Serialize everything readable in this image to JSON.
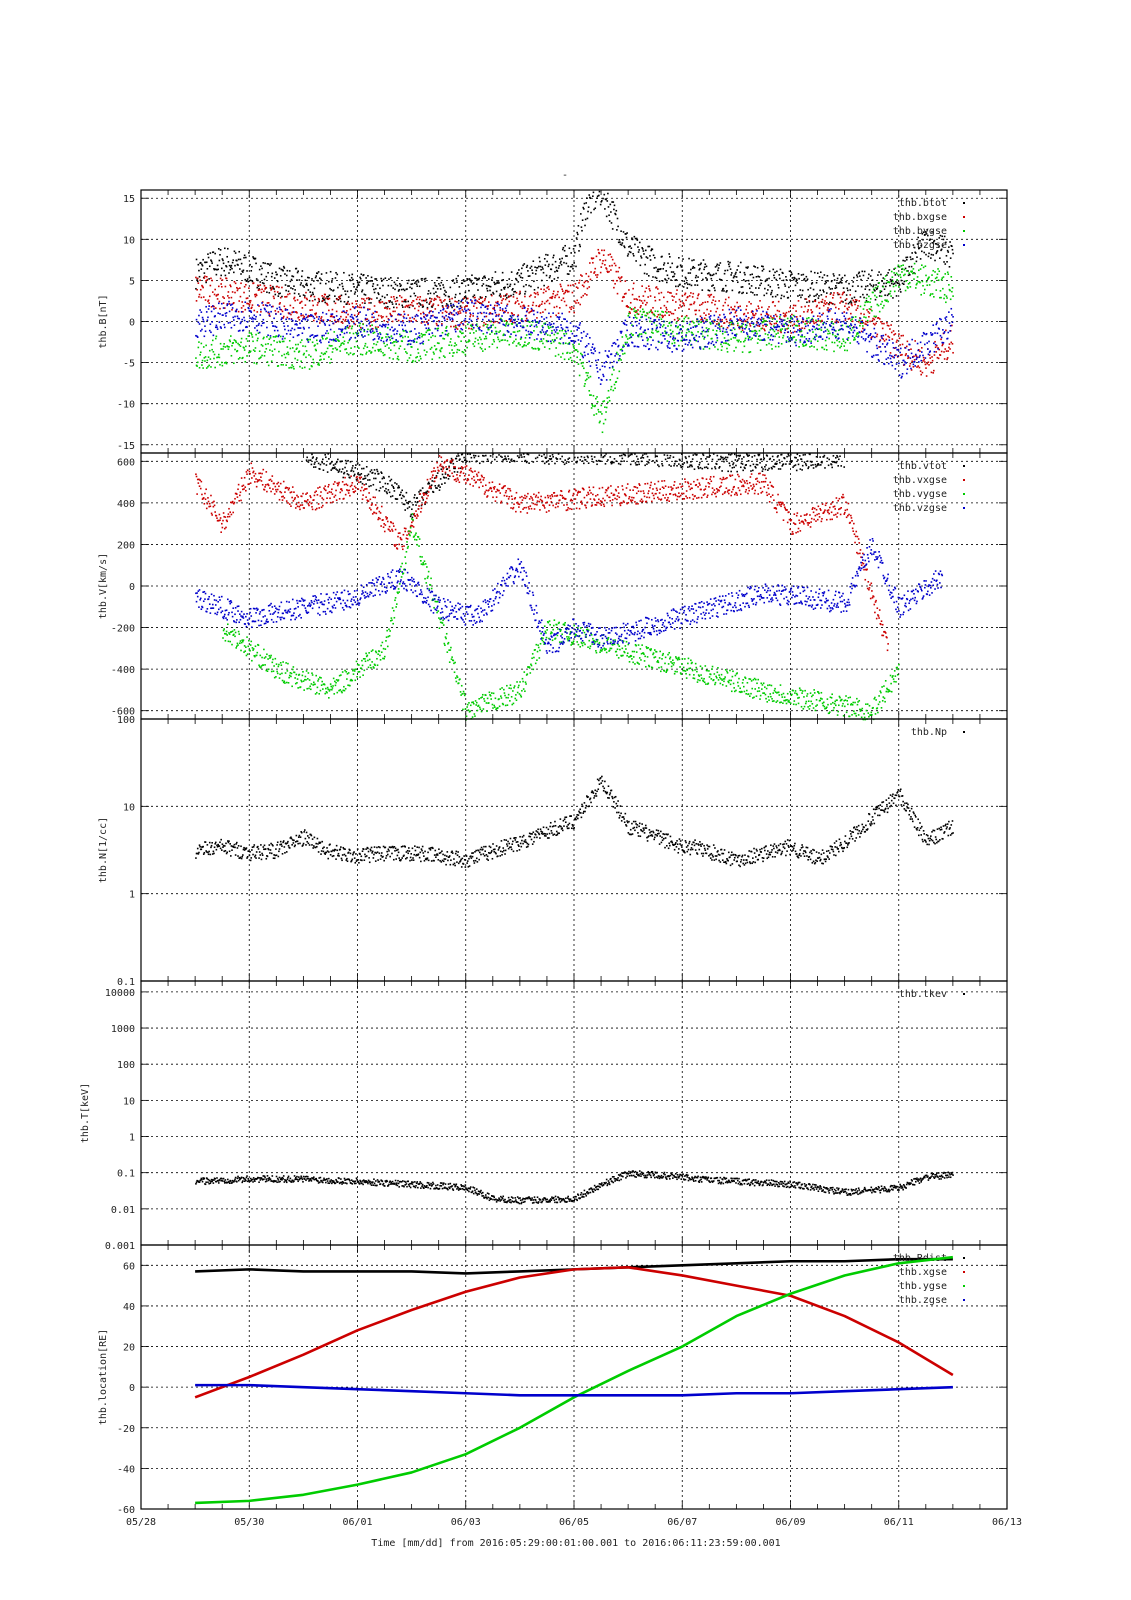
{
  "figure": {
    "top_title": "-",
    "bottom_label": "Time [mm/dd]  from 2016:05:29:00:01:00.001  to  2016:06:11:23:59:00.001",
    "x_tick_labels": [
      "05/28",
      "05/30",
      "06/01",
      "06/03",
      "06/05",
      "06/07",
      "06/09",
      "06/11",
      "06/13"
    ],
    "colors": {
      "black": "#000000",
      "red": "#cc0000",
      "green": "#00cc00",
      "blue": "#0000cc"
    }
  },
  "chart_data": [
    {
      "type": "scatter",
      "ylabel": "thb.B[nT]",
      "yscale": "linear",
      "ylim": [
        -16,
        16
      ],
      "yticks": [
        15,
        10,
        5,
        0,
        -5,
        -10,
        -15
      ],
      "grid": true,
      "legend_position": "top-right",
      "series": [
        {
          "name": "thb.btot",
          "color": "#000000",
          "values": [
            [
              1,
              6
            ],
            [
              1.5,
              7.5
            ],
            [
              2,
              6.5
            ],
            [
              2.5,
              5
            ],
            [
              3,
              4.5
            ],
            [
              4,
              4
            ],
            [
              5,
              3.5
            ],
            [
              6,
              3.8
            ],
            [
              7,
              5
            ],
            [
              8,
              8
            ],
            [
              8.2,
              14
            ],
            [
              8.5,
              16
            ],
            [
              9,
              9
            ],
            [
              9.5,
              7
            ],
            [
              10,
              6
            ],
            [
              11,
              5.5
            ],
            [
              12,
              4.5
            ],
            [
              13,
              4
            ],
            [
              14,
              5
            ],
            [
              14.5,
              10
            ],
            [
              15,
              8
            ]
          ]
        },
        {
          "name": "thb.bxgse",
          "color": "#cc0000",
          "values": [
            [
              1,
              4
            ],
            [
              2,
              3
            ],
            [
              3,
              2
            ],
            [
              4,
              1
            ],
            [
              5,
              1.5
            ],
            [
              6,
              1
            ],
            [
              7,
              2
            ],
            [
              8,
              3
            ],
            [
              8.5,
              8
            ],
            [
              9,
              3
            ],
            [
              10,
              2
            ],
            [
              11,
              1
            ],
            [
              12,
              0.5
            ],
            [
              13,
              2
            ],
            [
              14,
              -3
            ],
            [
              14.5,
              -5
            ],
            [
              15,
              -2
            ]
          ]
        },
        {
          "name": "thb.bygse",
          "color": "#00cc00",
          "values": [
            [
              1,
              -4
            ],
            [
              2,
              -3
            ],
            [
              3,
              -4
            ],
            [
              4,
              -2
            ],
            [
              5,
              -3
            ],
            [
              6,
              -2
            ],
            [
              7,
              -1
            ],
            [
              8,
              -3
            ],
            [
              8.5,
              -12
            ],
            [
              9,
              0
            ],
            [
              10,
              -1
            ],
            [
              11,
              -2
            ],
            [
              12,
              -1
            ],
            [
              13,
              -2
            ],
            [
              14,
              6
            ],
            [
              15,
              4
            ]
          ]
        },
        {
          "name": "thb.bzgse",
          "color": "#0000cc",
          "values": [
            [
              1,
              0
            ],
            [
              2,
              1
            ],
            [
              3,
              -1
            ],
            [
              4,
              0
            ],
            [
              5,
              -1
            ],
            [
              6,
              1
            ],
            [
              7,
              0
            ],
            [
              8,
              -1
            ],
            [
              8.5,
              -6
            ],
            [
              9,
              -1
            ],
            [
              10,
              -2
            ],
            [
              11,
              0
            ],
            [
              12,
              -1
            ],
            [
              13,
              0
            ],
            [
              14,
              -5
            ],
            [
              15,
              0
            ]
          ]
        }
      ]
    },
    {
      "type": "scatter",
      "ylabel": "thb.V[km/s]",
      "yscale": "linear",
      "ylim": [
        -640,
        640
      ],
      "yticks": [
        600,
        400,
        200,
        0,
        -200,
        -400,
        -600
      ],
      "grid": true,
      "legend_position": "top-right",
      "series": [
        {
          "name": "thb.vtot",
          "color": "#000000",
          "values": [
            [
              3,
              640
            ],
            [
              4.5,
              500
            ],
            [
              5,
              380
            ],
            [
              6,
              640
            ],
            [
              9,
              640
            ],
            [
              11,
              600
            ],
            [
              13,
              620
            ]
          ]
        },
        {
          "name": "thb.vxgse",
          "color": "#cc0000",
          "values": [
            [
              1,
              500
            ],
            [
              1.5,
              300
            ],
            [
              2,
              550
            ],
            [
              3,
              400
            ],
            [
              4,
              500
            ],
            [
              4.8,
              200
            ],
            [
              5.5,
              600
            ],
            [
              7,
              400
            ],
            [
              11.5,
              500
            ],
            [
              12,
              300
            ],
            [
              13,
              400
            ],
            [
              13.8,
              -300
            ]
          ]
        },
        {
          "name": "thb.vygse",
          "color": "#00cc00",
          "values": [
            [
              1.5,
              -200
            ],
            [
              2.5,
              -400
            ],
            [
              3.5,
              -500
            ],
            [
              4.5,
              -300
            ],
            [
              5,
              300
            ],
            [
              6,
              -600
            ],
            [
              7,
              -500
            ],
            [
              7.5,
              -200
            ],
            [
              11.5,
              -500
            ],
            [
              12.5,
              -550
            ],
            [
              13.5,
              -600
            ],
            [
              14,
              -400
            ]
          ]
        },
        {
          "name": "thb.vzgse",
          "color": "#0000cc",
          "values": [
            [
              1,
              -50
            ],
            [
              1.5,
              -100
            ],
            [
              2,
              -150
            ],
            [
              3,
              -100
            ],
            [
              4,
              -50
            ],
            [
              4.8,
              50
            ],
            [
              5.5,
              -100
            ],
            [
              6.2,
              -150
            ],
            [
              7,
              100
            ],
            [
              7.5,
              -300
            ],
            [
              8,
              -200
            ],
            [
              8.5,
              -250
            ],
            [
              9,
              -220
            ],
            [
              11.5,
              -30
            ],
            [
              12.5,
              -60
            ],
            [
              13,
              -80
            ],
            [
              13.5,
              200
            ],
            [
              14,
              -100
            ],
            [
              14.8,
              50
            ]
          ]
        }
      ]
    },
    {
      "type": "scatter",
      "ylabel": "thb.N[1/cc]",
      "yscale": "log",
      "ylim": [
        0.1,
        100
      ],
      "yticks": [
        100,
        10,
        1,
        0.1
      ],
      "grid": true,
      "legend_position": "top-right",
      "series": [
        {
          "name": "thb.Np",
          "color": "#000000",
          "values": [
            [
              1,
              3.2
            ],
            [
              1.5,
              3.5
            ],
            [
              2,
              3
            ],
            [
              2.5,
              3.2
            ],
            [
              3,
              4.5
            ],
            [
              3.5,
              3
            ],
            [
              4,
              2.8
            ],
            [
              5,
              3
            ],
            [
              6,
              2.5
            ],
            [
              7,
              4
            ],
            [
              8,
              7
            ],
            [
              8.5,
              20
            ],
            [
              9,
              6
            ],
            [
              10,
              3.5
            ],
            [
              10.2,
              3.5
            ],
            [
              11,
              2.5
            ],
            [
              12,
              3.5
            ],
            [
              12.5,
              2.5
            ],
            [
              13,
              4
            ],
            [
              14,
              14
            ],
            [
              14.5,
              4
            ],
            [
              15,
              6
            ]
          ]
        }
      ]
    },
    {
      "type": "scatter",
      "ylabel": "thb.T[keV]",
      "yscale": "log",
      "ylim": [
        0.001,
        20000
      ],
      "yticks": [
        10000,
        1000,
        100,
        10,
        1,
        0.1,
        0.01,
        0.001
      ],
      "grid": true,
      "legend_position": "top-right",
      "series": [
        {
          "name": "thb.tkev",
          "color": "#000000",
          "values": [
            [
              1,
              0.06
            ],
            [
              2,
              0.07
            ],
            [
              3,
              0.07
            ],
            [
              4,
              0.06
            ],
            [
              5,
              0.05
            ],
            [
              6,
              0.04
            ],
            [
              6.5,
              0.02
            ],
            [
              7,
              0.018
            ],
            [
              8,
              0.02
            ],
            [
              8.5,
              0.05
            ],
            [
              9,
              0.1
            ],
            [
              10,
              0.08
            ],
            [
              10.2,
              0.07
            ],
            [
              11,
              0.06
            ],
            [
              12,
              0.05
            ],
            [
              13,
              0.03
            ],
            [
              14,
              0.04
            ],
            [
              14.5,
              0.08
            ],
            [
              15,
              0.09
            ]
          ]
        }
      ]
    },
    {
      "type": "line",
      "ylabel": "thb.location[RE]",
      "xlabel": "Time [mm/dd]",
      "yscale": "linear",
      "ylim": [
        -60,
        70
      ],
      "yticks": [
        60,
        40,
        20,
        0,
        -20,
        -40,
        -60
      ],
      "grid": true,
      "legend_position": "top-right",
      "series": [
        {
          "name": "thb.Rdist",
          "color": "#000000",
          "x": [
            1,
            2,
            3,
            4,
            5,
            6,
            7,
            8,
            9,
            10,
            11,
            12,
            13,
            14,
            15
          ],
          "values": [
            57,
            58,
            57,
            57,
            57,
            56,
            57,
            58,
            59,
            60,
            61,
            62,
            62,
            63,
            63
          ]
        },
        {
          "name": "thb.xgse",
          "color": "#cc0000",
          "x": [
            1,
            2,
            3,
            4,
            5,
            6,
            7,
            8,
            9,
            10,
            11,
            12,
            13,
            14,
            15
          ],
          "values": [
            -5,
            5,
            16,
            28,
            38,
            47,
            54,
            58,
            59,
            55,
            50,
            45,
            35,
            22,
            6
          ]
        },
        {
          "name": "thb.ygse",
          "color": "#00cc00",
          "x": [
            1,
            2,
            3,
            4,
            5,
            6,
            7,
            8,
            9,
            10,
            11,
            12,
            13,
            14,
            15
          ],
          "values": [
            -57,
            -56,
            -53,
            -48,
            -42,
            -33,
            -20,
            -5,
            8,
            20,
            35,
            46,
            55,
            61,
            64
          ]
        },
        {
          "name": "thb.zgse",
          "color": "#0000cc",
          "x": [
            1,
            2,
            3,
            4,
            5,
            6,
            7,
            8,
            9,
            10,
            11,
            12,
            13,
            14,
            15
          ],
          "values": [
            1,
            1,
            0,
            -1,
            -2,
            -3,
            -4,
            -4,
            -4,
            -4,
            -3,
            -3,
            -2,
            -1,
            0
          ]
        }
      ]
    }
  ]
}
